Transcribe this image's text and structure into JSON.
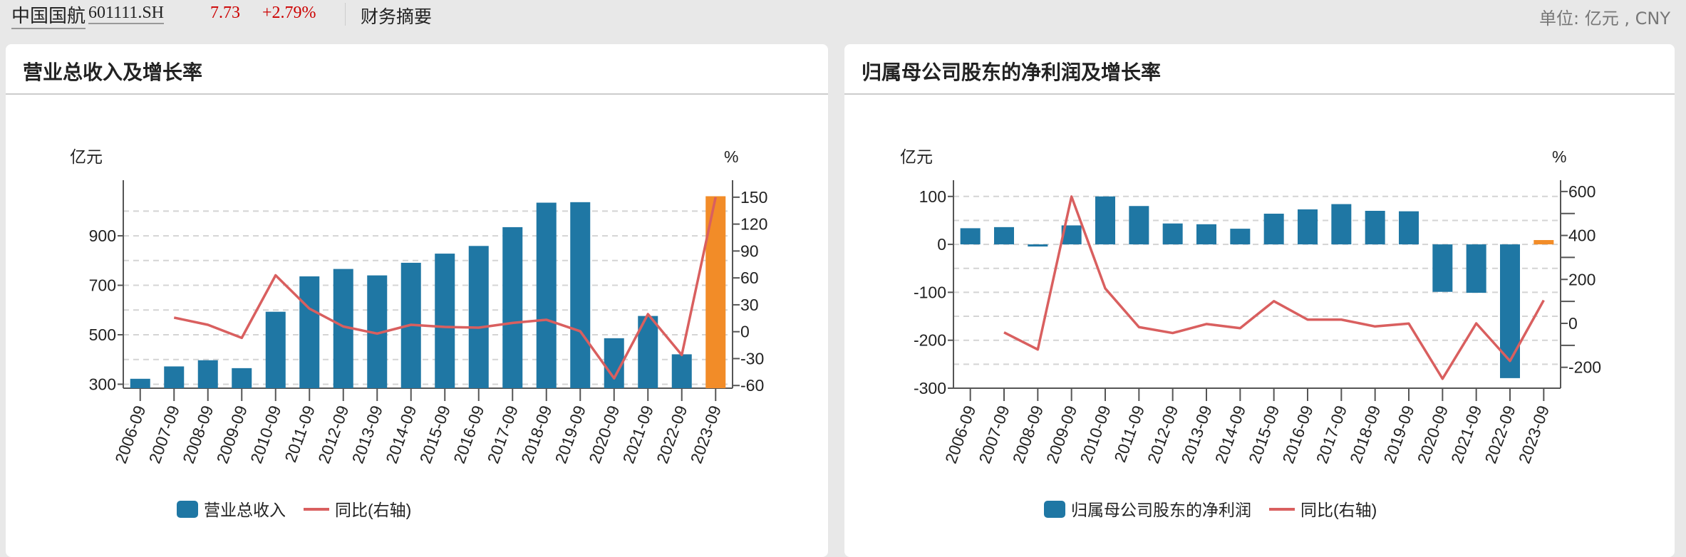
{
  "header": {
    "stock_name": "中国国航",
    "stock_code": "601111.SH",
    "price": "7.73",
    "change": "+2.79%",
    "section": "财务摘要",
    "unit": "单位: 亿元 , CNY"
  },
  "colors": {
    "bar": "#1f77a4",
    "highlight": "#f28c28",
    "line": "#d95f5f",
    "price_up": "#cc0000"
  },
  "chart_data": [
    {
      "type": "bar+line",
      "title": "营业总收入及增长率",
      "ylabel": "亿元",
      "y2label": "%",
      "categories": [
        "2006-09",
        "2007-09",
        "2008-09",
        "2009-09",
        "2010-09",
        "2011-09",
        "2012-09",
        "2013-09",
        "2014-09",
        "2015-09",
        "2016-09",
        "2017-09",
        "2018-09",
        "2019-09",
        "2020-09",
        "2021-09",
        "2022-09",
        "2023-09"
      ],
      "yticks": [
        300,
        500,
        700,
        900
      ],
      "ygrid": [
        300,
        400,
        500,
        600,
        700,
        800,
        900,
        1000
      ],
      "ylim": [
        284,
        1096
      ],
      "y2ticks": [
        -60,
        -30,
        0,
        30,
        60,
        90,
        120,
        150
      ],
      "y2lim": [
        -63,
        161
      ],
      "highlight_index": 17,
      "series": [
        {
          "name": "营业总收入",
          "type": "bar",
          "axis": "left",
          "values": [
            322,
            372,
            397,
            365,
            593,
            736,
            766,
            740,
            791,
            828,
            859,
            935,
            1034,
            1036,
            486,
            576,
            421,
            1060
          ]
        },
        {
          "name": "同比(右轴)",
          "type": "line",
          "axis": "right",
          "values": [
            null,
            15.7,
            7.7,
            -6.9,
            62.9,
            25.7,
            5.8,
            -2.1,
            7.7,
            5.3,
            4.5,
            9.8,
            13.3,
            0.5,
            -52,
            19.6,
            -26,
            150
          ]
        }
      ],
      "legend": "bottom",
      "grid": true
    },
    {
      "type": "bar+line",
      "title": "归属母公司股东的净利润及增长率",
      "ylabel": "亿元",
      "y2label": "%",
      "categories": [
        "2006-09",
        "2007-09",
        "2008-09",
        "2009-09",
        "2010-09",
        "2011-09",
        "2012-09",
        "2013-09",
        "2014-09",
        "2015-09",
        "2016-09",
        "2017-09",
        "2018-09",
        "2019-09",
        "2020-09",
        "2021-09",
        "2022-09",
        "2023-09"
      ],
      "yticks": [
        100,
        0,
        -100,
        -200,
        -300
      ],
      "ygrid": [
        100,
        50,
        0,
        -50,
        -100,
        -150,
        -200,
        -250,
        -300
      ],
      "ylim": [
        -300,
        119
      ],
      "y2ticks": [
        600,
        400,
        200,
        0,
        -200
      ],
      "y2minor": [
        500,
        300,
        100,
        -100
      ],
      "y2lim": [
        -295,
        619
      ],
      "highlight_index": 17,
      "series": [
        {
          "name": "归属母公司股东的净利润",
          "type": "bar",
          "axis": "left",
          "values": [
            33.7,
            36,
            -4,
            39.6,
            100,
            80,
            43.6,
            42,
            32.7,
            64,
            73,
            84,
            70,
            69,
            -99,
            -101,
            -279,
            9
          ]
        },
        {
          "name": "同比(右轴)",
          "type": "line",
          "axis": "right",
          "values": [
            null,
            -41,
            -119,
            577,
            159,
            -17,
            -44,
            -3,
            -22,
            101,
            17,
            17,
            -14,
            -1,
            -252,
            0,
            -171,
            105
          ]
        }
      ],
      "legend": "bottom",
      "grid": true
    }
  ]
}
